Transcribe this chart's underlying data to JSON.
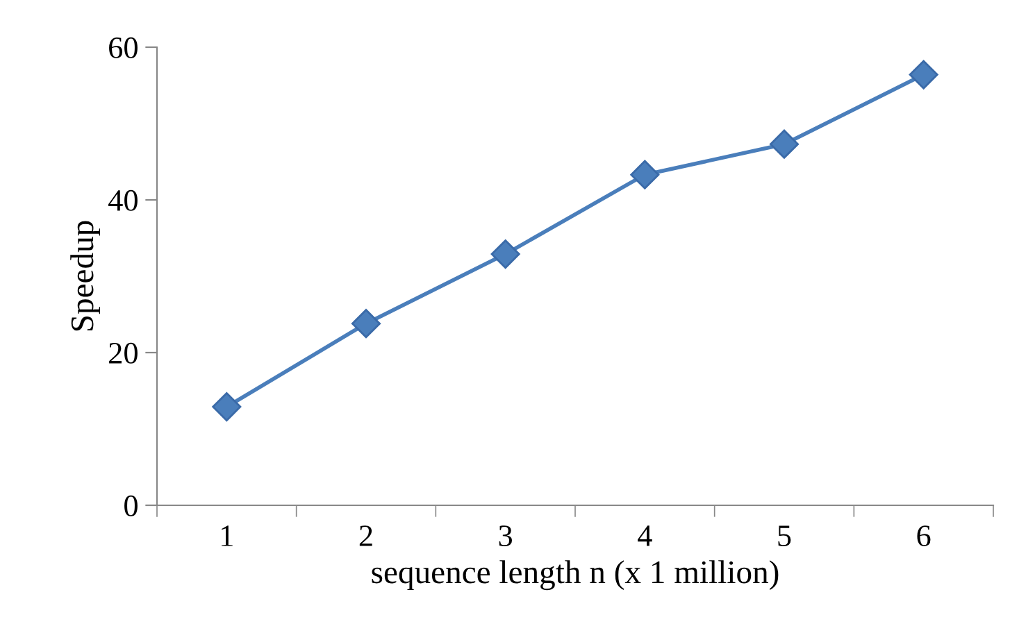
{
  "chart_data": {
    "type": "line",
    "xlabel": "sequence length n (x 1 million)",
    "ylabel": "Speedup",
    "categories": [
      "1",
      "2",
      "3",
      "4",
      "5",
      "6"
    ],
    "series": [
      {
        "color": "#4a7ebb",
        "values": [
          12.9,
          23.8,
          32.9,
          43.3,
          47.3,
          56.4
        ]
      }
    ],
    "ylim": [
      0,
      60
    ],
    "yticks": [
      0,
      20,
      40,
      60
    ],
    "grid": false,
    "legend": false,
    "marker": "diamond",
    "line_style": "solid"
  }
}
